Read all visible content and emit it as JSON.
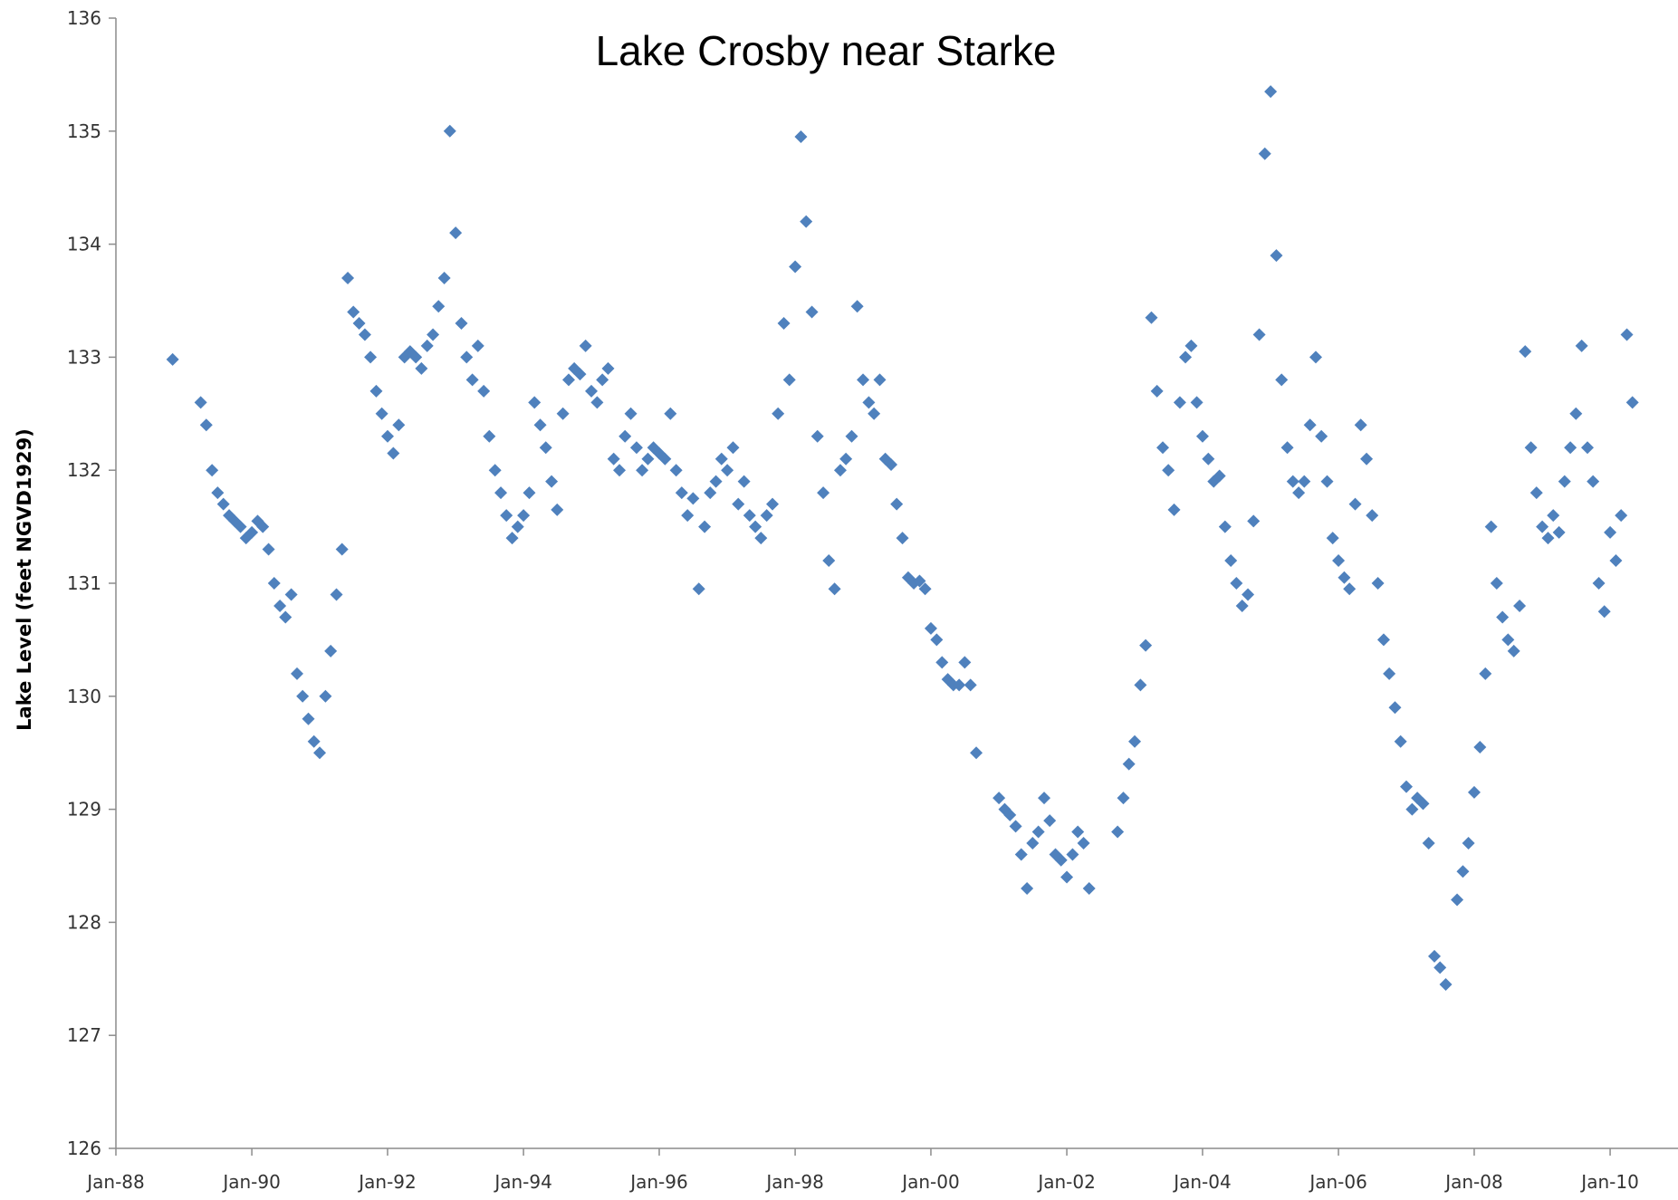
{
  "chart_data": {
    "type": "scatter",
    "title": "Lake Crosby near Starke",
    "xlabel": "",
    "ylabel": "Lake Level (feet NGVD1929)",
    "x_axis_type": "date",
    "xlim": [
      "1988-01-01",
      "2011-01-01"
    ],
    "ylim": [
      126,
      136
    ],
    "x_ticks": [
      "1988-01-01",
      "1990-01-01",
      "1992-01-01",
      "1994-01-01",
      "1996-01-01",
      "1998-01-01",
      "2000-01-01",
      "2002-01-01",
      "2004-01-01",
      "2006-01-01",
      "2008-01-01",
      "2010-01-01"
    ],
    "x_tick_labels": [
      "Jan-88",
      "Jan-90",
      "Jan-92",
      "Jan-94",
      "Jan-96",
      "Jan-98",
      "Jan-00",
      "Jan-02",
      "Jan-04",
      "Jan-06",
      "Jan-08",
      "Jan-10"
    ],
    "y_ticks": [
      126,
      127,
      128,
      129,
      130,
      131,
      132,
      133,
      134,
      135,
      136
    ],
    "grid": false,
    "legend": "none",
    "marker": "diamond",
    "color": "#4f81bd",
    "series": [
      {
        "points": [
          [
            "1988-11-01",
            132.98
          ],
          [
            "1989-04-01",
            132.6
          ],
          [
            "1989-05-01",
            132.4
          ],
          [
            "1989-06-01",
            132.0
          ],
          [
            "1989-07-01",
            131.8
          ],
          [
            "1989-08-01",
            131.7
          ],
          [
            "1989-09-01",
            131.6
          ],
          [
            "1989-10-01",
            131.55
          ],
          [
            "1989-11-01",
            131.5
          ],
          [
            "1989-12-01",
            131.4
          ],
          [
            "1990-01-01",
            131.45
          ],
          [
            "1990-02-01",
            131.55
          ],
          [
            "1990-03-01",
            131.5
          ],
          [
            "1990-04-01",
            131.3
          ],
          [
            "1990-05-01",
            131.0
          ],
          [
            "1990-06-01",
            130.8
          ],
          [
            "1990-07-01",
            130.7
          ],
          [
            "1990-08-01",
            130.9
          ],
          [
            "1990-09-01",
            130.2
          ],
          [
            "1990-10-01",
            130.0
          ],
          [
            "1990-11-01",
            129.8
          ],
          [
            "1990-12-01",
            129.6
          ],
          [
            "1991-01-01",
            129.5
          ],
          [
            "1991-02-01",
            130.0
          ],
          [
            "1991-03-01",
            130.4
          ],
          [
            "1991-04-01",
            130.9
          ],
          [
            "1991-05-01",
            131.3
          ],
          [
            "1991-06-01",
            133.7
          ],
          [
            "1991-07-01",
            133.4
          ],
          [
            "1991-08-01",
            133.3
          ],
          [
            "1991-09-01",
            133.2
          ],
          [
            "1991-10-01",
            133.0
          ],
          [
            "1991-11-01",
            132.7
          ],
          [
            "1991-12-01",
            132.5
          ],
          [
            "1992-01-01",
            132.3
          ],
          [
            "1992-02-01",
            132.15
          ],
          [
            "1992-03-01",
            132.4
          ],
          [
            "1992-04-01",
            133.0
          ],
          [
            "1992-05-01",
            133.05
          ],
          [
            "1992-06-01",
            133.0
          ],
          [
            "1992-07-01",
            132.9
          ],
          [
            "1992-08-01",
            133.1
          ],
          [
            "1992-09-01",
            133.2
          ],
          [
            "1992-10-01",
            133.45
          ],
          [
            "1992-11-01",
            133.7
          ],
          [
            "1992-12-01",
            135.0
          ],
          [
            "1993-01-01",
            134.1
          ],
          [
            "1993-02-01",
            133.3
          ],
          [
            "1993-03-01",
            133.0
          ],
          [
            "1993-04-01",
            132.8
          ],
          [
            "1993-05-01",
            133.1
          ],
          [
            "1993-06-01",
            132.7
          ],
          [
            "1993-07-01",
            132.3
          ],
          [
            "1993-08-01",
            132.0
          ],
          [
            "1993-09-01",
            131.8
          ],
          [
            "1993-10-01",
            131.6
          ],
          [
            "1993-11-01",
            131.4
          ],
          [
            "1993-12-01",
            131.5
          ],
          [
            "1994-01-01",
            131.6
          ],
          [
            "1994-02-01",
            131.8
          ],
          [
            "1994-03-01",
            132.6
          ],
          [
            "1994-04-01",
            132.4
          ],
          [
            "1994-05-01",
            132.2
          ],
          [
            "1994-06-01",
            131.9
          ],
          [
            "1994-07-01",
            131.65
          ],
          [
            "1994-08-01",
            132.5
          ],
          [
            "1994-09-01",
            132.8
          ],
          [
            "1994-10-01",
            132.9
          ],
          [
            "1994-11-01",
            132.85
          ],
          [
            "1994-12-01",
            133.1
          ],
          [
            "1995-01-01",
            132.7
          ],
          [
            "1995-02-01",
            132.6
          ],
          [
            "1995-03-01",
            132.8
          ],
          [
            "1995-04-01",
            132.9
          ],
          [
            "1995-05-01",
            132.1
          ],
          [
            "1995-06-01",
            132.0
          ],
          [
            "1995-07-01",
            132.3
          ],
          [
            "1995-08-01",
            132.5
          ],
          [
            "1995-09-01",
            132.2
          ],
          [
            "1995-10-01",
            132.0
          ],
          [
            "1995-11-01",
            132.1
          ],
          [
            "1995-12-01",
            132.2
          ],
          [
            "1996-01-01",
            132.15
          ],
          [
            "1996-02-01",
            132.1
          ],
          [
            "1996-03-01",
            132.5
          ],
          [
            "1996-04-01",
            132.0
          ],
          [
            "1996-05-01",
            131.8
          ],
          [
            "1996-06-01",
            131.6
          ],
          [
            "1996-07-01",
            131.75
          ],
          [
            "1996-08-01",
            130.95
          ],
          [
            "1996-09-01",
            131.5
          ],
          [
            "1996-10-01",
            131.8
          ],
          [
            "1996-11-01",
            131.9
          ],
          [
            "1996-12-01",
            132.1
          ],
          [
            "1997-01-01",
            132.0
          ],
          [
            "1997-02-01",
            132.2
          ],
          [
            "1997-03-01",
            131.7
          ],
          [
            "1997-04-01",
            131.9
          ],
          [
            "1997-05-01",
            131.6
          ],
          [
            "1997-06-01",
            131.5
          ],
          [
            "1997-07-01",
            131.4
          ],
          [
            "1997-08-01",
            131.6
          ],
          [
            "1997-09-01",
            131.7
          ],
          [
            "1997-10-01",
            132.5
          ],
          [
            "1997-11-01",
            133.3
          ],
          [
            "1997-12-01",
            132.8
          ],
          [
            "1998-01-01",
            133.8
          ],
          [
            "1998-02-01",
            134.95
          ],
          [
            "1998-03-01",
            134.2
          ],
          [
            "1998-04-01",
            133.4
          ],
          [
            "1998-05-01",
            132.3
          ],
          [
            "1998-06-01",
            131.8
          ],
          [
            "1998-07-01",
            131.2
          ],
          [
            "1998-08-01",
            130.95
          ],
          [
            "1998-09-01",
            132.0
          ],
          [
            "1998-10-01",
            132.1
          ],
          [
            "1998-11-01",
            132.3
          ],
          [
            "1998-12-01",
            133.45
          ],
          [
            "1999-01-01",
            132.8
          ],
          [
            "1999-02-01",
            132.6
          ],
          [
            "1999-03-01",
            132.5
          ],
          [
            "1999-04-01",
            132.8
          ],
          [
            "1999-05-01",
            132.1
          ],
          [
            "1999-06-01",
            132.05
          ],
          [
            "1999-07-01",
            131.7
          ],
          [
            "1999-08-01",
            131.4
          ],
          [
            "1999-09-01",
            131.05
          ],
          [
            "1999-10-01",
            131.0
          ],
          [
            "1999-11-01",
            131.02
          ],
          [
            "1999-12-01",
            130.95
          ],
          [
            "2000-01-01",
            130.6
          ],
          [
            "2000-02-01",
            130.5
          ],
          [
            "2000-03-01",
            130.3
          ],
          [
            "2000-04-01",
            130.15
          ],
          [
            "2000-05-01",
            130.1
          ],
          [
            "2000-06-01",
            130.1
          ],
          [
            "2000-07-01",
            130.3
          ],
          [
            "2000-08-01",
            130.1
          ],
          [
            "2000-09-01",
            129.5
          ],
          [
            "2001-01-01",
            129.1
          ],
          [
            "2001-02-01",
            129.0
          ],
          [
            "2001-03-01",
            128.95
          ],
          [
            "2001-04-01",
            128.85
          ],
          [
            "2001-05-01",
            128.6
          ],
          [
            "2001-06-01",
            128.3
          ],
          [
            "2001-07-01",
            128.7
          ],
          [
            "2001-08-01",
            128.8
          ],
          [
            "2001-09-01",
            129.1
          ],
          [
            "2001-10-01",
            128.9
          ],
          [
            "2001-11-01",
            128.6
          ],
          [
            "2001-12-01",
            128.55
          ],
          [
            "2002-01-01",
            128.4
          ],
          [
            "2002-02-01",
            128.6
          ],
          [
            "2002-03-01",
            128.8
          ],
          [
            "2002-04-01",
            128.7
          ],
          [
            "2002-05-01",
            128.3
          ],
          [
            "2002-10-01",
            128.8
          ],
          [
            "2002-11-01",
            129.1
          ],
          [
            "2002-12-01",
            129.4
          ],
          [
            "2003-01-01",
            129.6
          ],
          [
            "2003-02-01",
            130.1
          ],
          [
            "2003-03-01",
            130.45
          ],
          [
            "2003-04-01",
            133.35
          ],
          [
            "2003-05-01",
            132.7
          ],
          [
            "2003-06-01",
            132.2
          ],
          [
            "2003-07-01",
            132.0
          ],
          [
            "2003-08-01",
            131.65
          ],
          [
            "2003-09-01",
            132.6
          ],
          [
            "2003-10-01",
            133.0
          ],
          [
            "2003-11-01",
            133.1
          ],
          [
            "2003-12-01",
            132.6
          ],
          [
            "2004-01-01",
            132.3
          ],
          [
            "2004-02-01",
            132.1
          ],
          [
            "2004-03-01",
            131.9
          ],
          [
            "2004-04-01",
            131.95
          ],
          [
            "2004-05-01",
            131.5
          ],
          [
            "2004-06-01",
            131.2
          ],
          [
            "2004-07-01",
            131.0
          ],
          [
            "2004-08-01",
            130.8
          ],
          [
            "2004-09-01",
            130.9
          ],
          [
            "2004-10-01",
            131.55
          ],
          [
            "2004-11-01",
            133.2
          ],
          [
            "2004-12-01",
            134.8
          ],
          [
            "2005-01-01",
            135.35
          ],
          [
            "2005-02-01",
            133.9
          ],
          [
            "2005-03-01",
            132.8
          ],
          [
            "2005-04-01",
            132.2
          ],
          [
            "2005-05-01",
            131.9
          ],
          [
            "2005-06-01",
            131.8
          ],
          [
            "2005-07-01",
            131.9
          ],
          [
            "2005-08-01",
            132.4
          ],
          [
            "2005-09-01",
            133.0
          ],
          [
            "2005-10-01",
            132.3
          ],
          [
            "2005-11-01",
            131.9
          ],
          [
            "2005-12-01",
            131.4
          ],
          [
            "2006-01-01",
            131.2
          ],
          [
            "2006-02-01",
            131.05
          ],
          [
            "2006-03-01",
            130.95
          ],
          [
            "2006-04-01",
            131.7
          ],
          [
            "2006-05-01",
            132.4
          ],
          [
            "2006-06-01",
            132.1
          ],
          [
            "2006-07-01",
            131.6
          ],
          [
            "2006-08-01",
            131.0
          ],
          [
            "2006-09-01",
            130.5
          ],
          [
            "2006-10-01",
            130.2
          ],
          [
            "2006-11-01",
            129.9
          ],
          [
            "2006-12-01",
            129.6
          ],
          [
            "2007-01-01",
            129.2
          ],
          [
            "2007-02-01",
            129.0
          ],
          [
            "2007-03-01",
            129.1
          ],
          [
            "2007-04-01",
            129.05
          ],
          [
            "2007-05-01",
            128.7
          ],
          [
            "2007-06-01",
            127.7
          ],
          [
            "2007-07-01",
            127.6
          ],
          [
            "2007-08-01",
            127.45
          ],
          [
            "2007-10-01",
            128.2
          ],
          [
            "2007-11-01",
            128.45
          ],
          [
            "2007-12-01",
            128.7
          ],
          [
            "2008-01-01",
            129.15
          ],
          [
            "2008-02-01",
            129.55
          ],
          [
            "2008-03-01",
            130.2
          ],
          [
            "2008-04-01",
            131.5
          ],
          [
            "2008-05-01",
            131.0
          ],
          [
            "2008-06-01",
            130.7
          ],
          [
            "2008-07-01",
            130.5
          ],
          [
            "2008-08-01",
            130.4
          ],
          [
            "2008-09-01",
            130.8
          ],
          [
            "2008-10-01",
            133.05
          ],
          [
            "2008-11-01",
            132.2
          ],
          [
            "2008-12-01",
            131.8
          ],
          [
            "2009-01-01",
            131.5
          ],
          [
            "2009-02-01",
            131.4
          ],
          [
            "2009-03-01",
            131.6
          ],
          [
            "2009-04-01",
            131.45
          ],
          [
            "2009-05-01",
            131.9
          ],
          [
            "2009-06-01",
            132.2
          ],
          [
            "2009-07-01",
            132.5
          ],
          [
            "2009-08-01",
            133.1
          ],
          [
            "2009-09-01",
            132.2
          ],
          [
            "2009-10-01",
            131.9
          ],
          [
            "2009-11-01",
            131.0
          ],
          [
            "2009-12-01",
            130.75
          ],
          [
            "2010-01-01",
            131.45
          ],
          [
            "2010-02-01",
            131.2
          ],
          [
            "2010-03-01",
            131.6
          ],
          [
            "2010-04-01",
            133.2
          ],
          [
            "2010-05-01",
            132.6
          ]
        ]
      }
    ]
  }
}
